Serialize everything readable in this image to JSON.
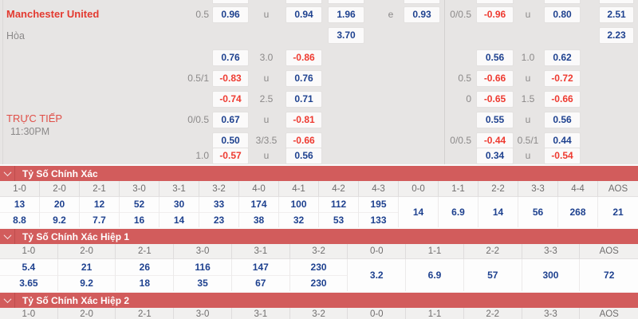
{
  "colors": {
    "odds_positive": "#1e418f",
    "odds_negative": "#ee3a30",
    "section_header": "#d25c5c"
  },
  "top_panel": {
    "home_team": "Manchester United",
    "draw_label": "Hòa",
    "live_label": "TRỰC TIẾP",
    "live_time": "11:30PM",
    "cells": [
      {
        "r": 0,
        "c": "hcpL",
        "t": "0.5",
        "k": "label"
      },
      {
        "r": 0,
        "c": "boxA",
        "t": "0.96",
        "k": "blue"
      },
      {
        "r": 0,
        "c": "lblL2",
        "t": "u",
        "k": "label"
      },
      {
        "r": 0,
        "c": "boxB",
        "t": "0.94",
        "k": "blue"
      },
      {
        "r": 0,
        "c": "boxC",
        "t": "1.96",
        "k": "blue"
      },
      {
        "r": 0,
        "c": "lblE",
        "t": "e",
        "k": "label"
      },
      {
        "r": 0,
        "c": "boxD",
        "t": "0.93",
        "k": "blue"
      },
      {
        "r": 0,
        "c": "hcpR",
        "t": "0/0.5",
        "k": "label"
      },
      {
        "r": 0,
        "c": "boxE",
        "t": "-0.96",
        "k": "red"
      },
      {
        "r": 0,
        "c": "lblR2",
        "t": "u",
        "k": "label"
      },
      {
        "r": 0,
        "c": "boxF",
        "t": "0.80",
        "k": "blue"
      },
      {
        "r": 0,
        "c": "boxG",
        "t": "2.51",
        "k": "blue"
      },
      {
        "r": 1,
        "c": "boxC",
        "t": "3.70",
        "k": "blue"
      },
      {
        "r": 1,
        "c": "boxG",
        "t": "2.23",
        "k": "blue"
      },
      {
        "r": 2,
        "c": "boxA",
        "t": "0.76",
        "k": "blue"
      },
      {
        "r": 2,
        "c": "lblL2",
        "t": "3.0",
        "k": "label"
      },
      {
        "r": 2,
        "c": "boxB",
        "t": "-0.86",
        "k": "red"
      },
      {
        "r": 2,
        "c": "boxE",
        "t": "0.56",
        "k": "blue"
      },
      {
        "r": 2,
        "c": "lblR2",
        "t": "1.0",
        "k": "label"
      },
      {
        "r": 2,
        "c": "boxF",
        "t": "0.62",
        "k": "blue"
      },
      {
        "r": 3,
        "c": "hcpL",
        "t": "0.5/1",
        "k": "label"
      },
      {
        "r": 3,
        "c": "boxA",
        "t": "-0.83",
        "k": "red"
      },
      {
        "r": 3,
        "c": "lblL2",
        "t": "u",
        "k": "label"
      },
      {
        "r": 3,
        "c": "boxB",
        "t": "0.76",
        "k": "blue"
      },
      {
        "r": 3,
        "c": "hcpR",
        "t": "0.5",
        "k": "label"
      },
      {
        "r": 3,
        "c": "boxE",
        "t": "-0.66",
        "k": "red"
      },
      {
        "r": 3,
        "c": "lblR2",
        "t": "u",
        "k": "label"
      },
      {
        "r": 3,
        "c": "boxF",
        "t": "-0.72",
        "k": "red"
      },
      {
        "r": 4,
        "c": "boxA",
        "t": "-0.74",
        "k": "red"
      },
      {
        "r": 4,
        "c": "lblL2",
        "t": "2.5",
        "k": "label"
      },
      {
        "r": 4,
        "c": "boxB",
        "t": "0.71",
        "k": "blue"
      },
      {
        "r": 4,
        "c": "hcpR",
        "t": "0",
        "k": "label"
      },
      {
        "r": 4,
        "c": "boxE",
        "t": "-0.65",
        "k": "red"
      },
      {
        "r": 4,
        "c": "lblR2",
        "t": "1.5",
        "k": "label"
      },
      {
        "r": 4,
        "c": "boxF",
        "t": "-0.66",
        "k": "red"
      },
      {
        "r": 5,
        "c": "hcpL",
        "t": "0/0.5",
        "k": "label"
      },
      {
        "r": 5,
        "c": "boxA",
        "t": "0.67",
        "k": "blue"
      },
      {
        "r": 5,
        "c": "lblL2",
        "t": "u",
        "k": "label"
      },
      {
        "r": 5,
        "c": "boxB",
        "t": "-0.81",
        "k": "red"
      },
      {
        "r": 5,
        "c": "boxE",
        "t": "0.55",
        "k": "blue"
      },
      {
        "r": 5,
        "c": "lblR2",
        "t": "u",
        "k": "label"
      },
      {
        "r": 5,
        "c": "boxF",
        "t": "0.56",
        "k": "blue"
      },
      {
        "r": 6,
        "c": "boxA",
        "t": "0.50",
        "k": "blue"
      },
      {
        "r": 6,
        "c": "lblL2",
        "t": "3/3.5",
        "k": "label"
      },
      {
        "r": 6,
        "c": "boxB",
        "t": "-0.66",
        "k": "red"
      },
      {
        "r": 6,
        "c": "hcpR",
        "t": "0/0.5",
        "k": "label"
      },
      {
        "r": 6,
        "c": "boxE",
        "t": "-0.44",
        "k": "red"
      },
      {
        "r": 6,
        "c": "lblR2",
        "t": "0.5/1",
        "k": "label"
      },
      {
        "r": 6,
        "c": "boxF",
        "t": "0.44",
        "k": "blue"
      },
      {
        "r": 7,
        "c": "hcpL",
        "t": "1.0",
        "k": "label"
      },
      {
        "r": 7,
        "c": "boxA",
        "t": "-0.57",
        "k": "red"
      },
      {
        "r": 7,
        "c": "lblL2",
        "t": "u",
        "k": "label"
      },
      {
        "r": 7,
        "c": "boxB",
        "t": "0.56",
        "k": "blue"
      },
      {
        "r": 7,
        "c": "boxE",
        "t": "0.34",
        "k": "blue"
      },
      {
        "r": 7,
        "c": "lblR2",
        "t": "u",
        "k": "label"
      },
      {
        "r": 7,
        "c": "boxF",
        "t": "-0.54",
        "k": "red"
      }
    ]
  },
  "sections": [
    {
      "title": "Tỷ Số Chính Xác",
      "columns": [
        {
          "header": "1-0",
          "values": [
            "13",
            "8.8"
          ]
        },
        {
          "header": "2-0",
          "values": [
            "20",
            "9.2"
          ]
        },
        {
          "header": "2-1",
          "values": [
            "12",
            "7.7"
          ]
        },
        {
          "header": "3-0",
          "values": [
            "52",
            "16"
          ]
        },
        {
          "header": "3-1",
          "values": [
            "30",
            "14"
          ]
        },
        {
          "header": "3-2",
          "values": [
            "33",
            "23"
          ]
        },
        {
          "header": "4-0",
          "values": [
            "174",
            "38"
          ]
        },
        {
          "header": "4-1",
          "values": [
            "100",
            "32"
          ]
        },
        {
          "header": "4-2",
          "values": [
            "112",
            "53"
          ]
        },
        {
          "header": "4-3",
          "values": [
            "195",
            "133"
          ]
        },
        {
          "header": "0-0",
          "values": [
            "14"
          ]
        },
        {
          "header": "1-1",
          "values": [
            "6.9"
          ]
        },
        {
          "header": "2-2",
          "values": [
            "14"
          ]
        },
        {
          "header": "3-3",
          "values": [
            "56"
          ]
        },
        {
          "header": "4-4",
          "values": [
            "268"
          ]
        },
        {
          "header": "AOS",
          "values": [
            "21"
          ]
        }
      ]
    },
    {
      "title": "Tỷ Số Chính Xác Hiệp 1",
      "columns": [
        {
          "header": "1-0",
          "values": [
            "5.4",
            "3.65"
          ]
        },
        {
          "header": "2-0",
          "values": [
            "21",
            "9.2"
          ]
        },
        {
          "header": "2-1",
          "values": [
            "26",
            "18"
          ]
        },
        {
          "header": "3-0",
          "values": [
            "116",
            "35"
          ]
        },
        {
          "header": "3-1",
          "values": [
            "147",
            "67"
          ]
        },
        {
          "header": "3-2",
          "values": [
            "230",
            "230"
          ]
        },
        {
          "header": "0-0",
          "values": [
            "3.2"
          ]
        },
        {
          "header": "1-1",
          "values": [
            "6.9"
          ]
        },
        {
          "header": "2-2",
          "values": [
            "57"
          ]
        },
        {
          "header": "3-3",
          "values": [
            "300"
          ]
        },
        {
          "header": "AOS",
          "values": [
            "72"
          ]
        }
      ]
    },
    {
      "title": "Tỷ Số Chính Xác Hiệp 2",
      "columns": [
        {
          "header": "1-0",
          "values": []
        },
        {
          "header": "2-0",
          "values": []
        },
        {
          "header": "2-1",
          "values": []
        },
        {
          "header": "3-0",
          "values": []
        },
        {
          "header": "3-1",
          "values": []
        },
        {
          "header": "3-2",
          "values": []
        },
        {
          "header": "0-0",
          "values": []
        },
        {
          "header": "1-1",
          "values": []
        },
        {
          "header": "2-2",
          "values": []
        },
        {
          "header": "3-3",
          "values": []
        },
        {
          "header": "AOS",
          "values": []
        }
      ]
    }
  ]
}
